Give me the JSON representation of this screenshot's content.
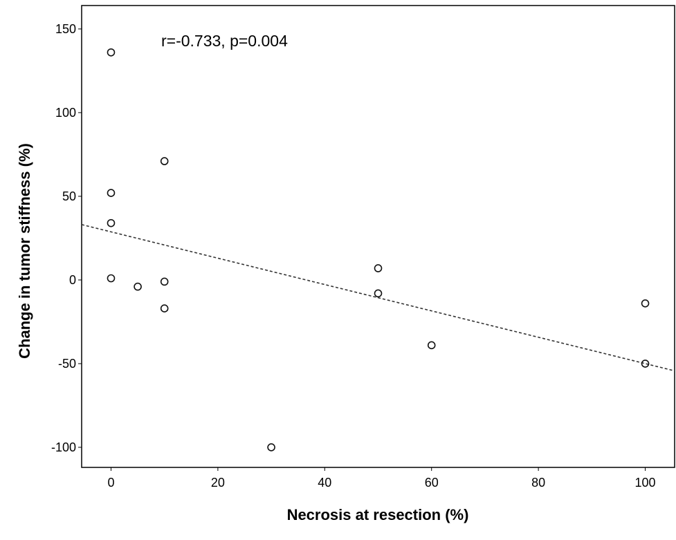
{
  "chart_data": {
    "type": "scatter",
    "title": "",
    "annotation": "r=-0.733, p=0.004",
    "xlabel": "Necrosis at resection (%)",
    "ylabel": "Change in tumor stiffness (%)",
    "xlim": [
      -5.5,
      105.5
    ],
    "ylim": [
      -112,
      164
    ],
    "xticks": [
      0,
      20,
      40,
      60,
      80,
      100
    ],
    "yticks": [
      -100,
      -50,
      0,
      50,
      100,
      150
    ],
    "grid": false,
    "points": [
      {
        "x": 0,
        "y": 136
      },
      {
        "x": 0,
        "y": 52
      },
      {
        "x": 0,
        "y": 34
      },
      {
        "x": 0,
        "y": 1
      },
      {
        "x": 5,
        "y": -4
      },
      {
        "x": 10,
        "y": 71
      },
      {
        "x": 10,
        "y": -1
      },
      {
        "x": 10,
        "y": -17
      },
      {
        "x": 30,
        "y": -100
      },
      {
        "x": 50,
        "y": 7
      },
      {
        "x": 50,
        "y": -8
      },
      {
        "x": 60,
        "y": -39
      },
      {
        "x": 100,
        "y": -14
      },
      {
        "x": 100,
        "y": -50
      }
    ],
    "fit_line": {
      "style": "dashed",
      "x": [
        -5.5,
        105.5
      ],
      "y": [
        33.1,
        -54.3
      ]
    }
  }
}
